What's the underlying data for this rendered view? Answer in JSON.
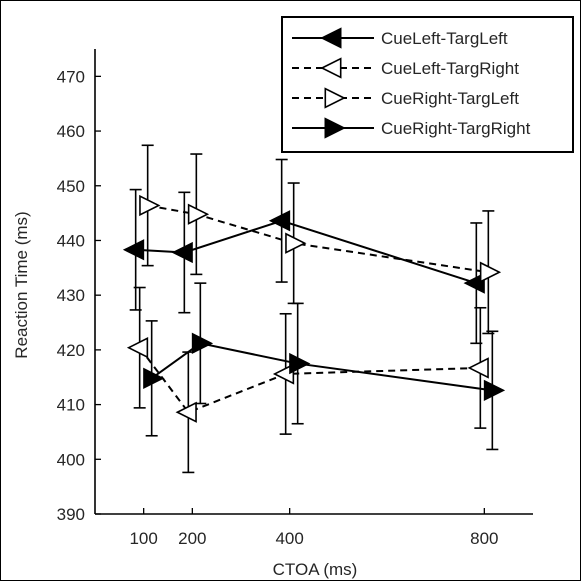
{
  "chart_data": {
    "type": "line",
    "xlabel": "CTOA (ms)",
    "ylabel": "Reaction Time (ms)",
    "x": [
      100,
      200,
      400,
      800
    ],
    "xticks": [
      "100",
      "200",
      "400",
      "800"
    ],
    "xlim": [
      0,
      900
    ],
    "ylim": [
      390,
      475
    ],
    "yticks": [
      "390",
      "400",
      "410",
      "420",
      "430",
      "440",
      "450",
      "460",
      "470"
    ],
    "grid": false,
    "legend_position": "top-right",
    "series": [
      {
        "name": "CueLeft-TargLeft",
        "marker": "triangle-left",
        "filled": true,
        "line_style": "solid",
        "values": [
          438.3,
          437.8,
          443.6,
          432.2
        ],
        "error": [
          11.0,
          11.0,
          11.2,
          11.0
        ]
      },
      {
        "name": "CueLeft-TargRight",
        "marker": "triangle-left",
        "filled": false,
        "line_style": "dashed",
        "values": [
          420.4,
          408.6,
          415.6,
          416.7
        ],
        "error": [
          11.0,
          11.0,
          11.0,
          11.0
        ]
      },
      {
        "name": "CueRight-TargLeft",
        "marker": "triangle-right",
        "filled": false,
        "line_style": "dashed",
        "values": [
          446.4,
          444.8,
          439.5,
          434.2
        ],
        "error": [
          11.0,
          11.0,
          11.0,
          11.2
        ]
      },
      {
        "name": "CueRight-TargRight",
        "marker": "triangle-right",
        "filled": true,
        "line_style": "solid",
        "values": [
          414.8,
          421.2,
          417.5,
          412.6
        ],
        "error": [
          10.5,
          11.0,
          11.0,
          10.8
        ]
      }
    ],
    "colors": {
      "ink": "#000000",
      "text": "#262626",
      "background": "#ffffff"
    }
  }
}
